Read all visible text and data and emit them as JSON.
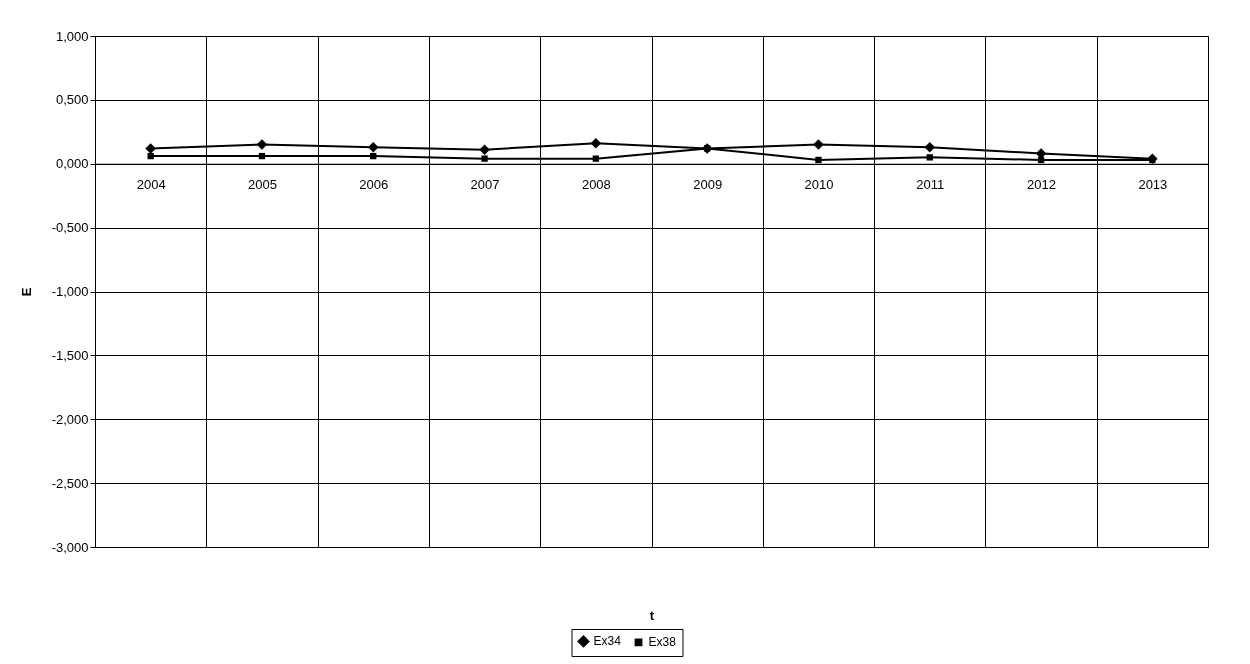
{
  "chart_data": {
    "type": "line",
    "xlabel": "t",
    "ylabel": "E",
    "categories": [
      "2004",
      "2005",
      "2006",
      "2007",
      "2008",
      "2009",
      "2010",
      "2011",
      "2012",
      "2013"
    ],
    "series": [
      {
        "name": "Ex34",
        "color": "#000000",
        "marker": "diamond",
        "values": [
          0.12,
          0.15,
          0.13,
          0.11,
          0.16,
          0.12,
          0.15,
          0.13,
          0.08,
          0.04
        ]
      },
      {
        "name": "Ex38",
        "color": "#000000",
        "marker": "square",
        "values": [
          0.06,
          0.06,
          0.06,
          0.04,
          0.04,
          0.12,
          0.03,
          0.05,
          0.03,
          0.03
        ]
      }
    ],
    "ylim": [
      -3,
      1
    ],
    "yticks": [
      {
        "value": -3,
        "label": "-3,000"
      },
      {
        "value": -2.5,
        "label": "-2,500"
      },
      {
        "value": -2,
        "label": "-2,000"
      },
      {
        "value": -1.5,
        "label": "-1,500"
      },
      {
        "value": -1,
        "label": "-1,000"
      },
      {
        "value": -0.5,
        "label": "-0,500"
      },
      {
        "value": 0,
        "label": "0,000"
      },
      {
        "value": 0.5,
        "label": "0,500"
      },
      {
        "value": 1,
        "label": "1,000"
      }
    ],
    "grid": true,
    "legend": "bottom"
  }
}
